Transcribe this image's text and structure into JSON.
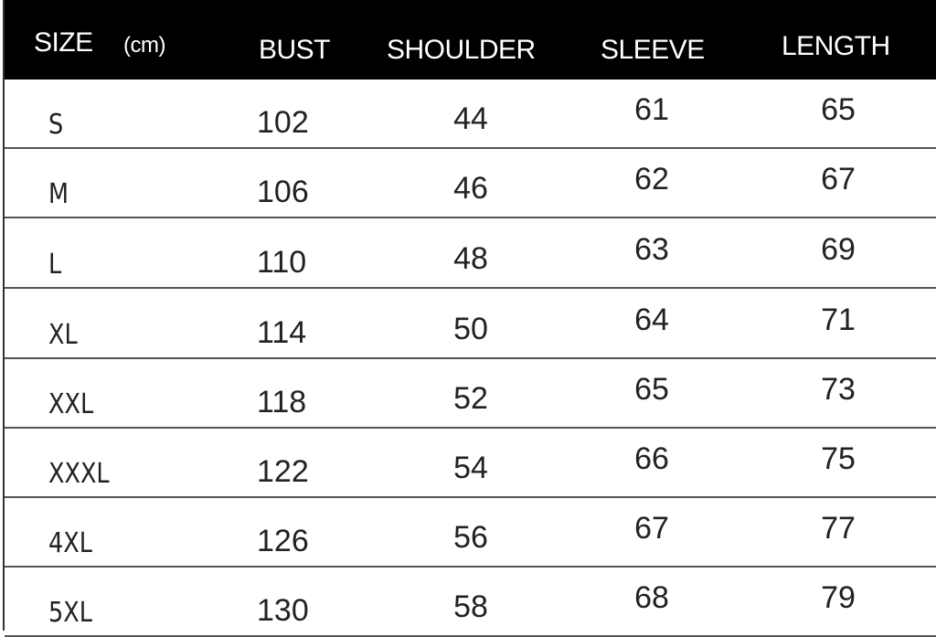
{
  "chart_data": {
    "type": "table",
    "columns": [
      "SIZE",
      "BUST",
      "SHOULDER",
      "SLEEVE",
      "LENGTH"
    ],
    "unit_label": "(cm)",
    "rows": [
      [
        "S",
        "102",
        "44",
        "61",
        "65"
      ],
      [
        "M",
        "106",
        "46",
        "62",
        "67"
      ],
      [
        "L",
        "110",
        "48",
        "63",
        "69"
      ],
      [
        "XL",
        "114",
        "50",
        "64",
        "71"
      ],
      [
        "XXL",
        "118",
        "52",
        "65",
        "73"
      ],
      [
        "XXXL",
        "122",
        "54",
        "66",
        "75"
      ],
      [
        "4XL",
        "126",
        "56",
        "67",
        "77"
      ],
      [
        "5XL",
        "130",
        "58",
        "68",
        "79"
      ]
    ],
    "colors": {
      "header_bg": "#000000",
      "header_text": "#ffffff"
    }
  }
}
